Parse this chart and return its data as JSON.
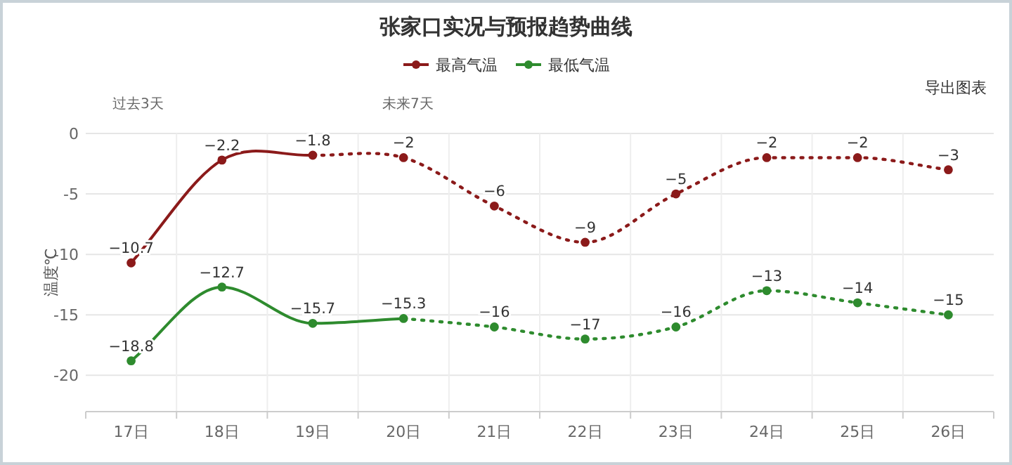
{
  "chart_data": {
    "type": "line",
    "title": "张家口实况与预报趋势曲线",
    "ylabel": "温度℃",
    "categories": [
      "17日",
      "18日",
      "19日",
      "20日",
      "21日",
      "22日",
      "23日",
      "24日",
      "25日",
      "26日"
    ],
    "series": [
      {
        "name": "最高气温",
        "color": "#8b1a1a",
        "line_style": "solid",
        "values": [
          -10.7,
          -2.2,
          -1.8,
          null,
          null,
          null,
          null,
          null,
          null,
          null
        ],
        "value_labels": [
          "−10.7",
          "−2.2",
          "−1.8",
          null,
          null,
          null,
          null,
          null,
          null,
          null
        ]
      },
      {
        "color": "#8b1a1a",
        "line_style": "dotted",
        "values": [
          null,
          null,
          -1.8,
          -2,
          -6,
          -9,
          -5,
          -2,
          -2,
          -3
        ],
        "value_labels": [
          null,
          null,
          null,
          "−2",
          "−6",
          "−9",
          "−5",
          "−2",
          "−2",
          "−3"
        ]
      },
      {
        "name": "最低气温",
        "color": "#2e8b2e",
        "line_style": "solid",
        "values": [
          -18.8,
          -12.7,
          -15.7,
          -15.3,
          null,
          null,
          null,
          null,
          null,
          null
        ],
        "value_labels": [
          "−18.8",
          "−12.7",
          "−15.7",
          "−15.3",
          null,
          null,
          null,
          null,
          null,
          null
        ]
      },
      {
        "color": "#2e8b2e",
        "line_style": "dotted",
        "values": [
          null,
          null,
          null,
          -15.3,
          -16,
          -17,
          -16,
          -13,
          -14,
          -15
        ],
        "value_labels": [
          null,
          null,
          null,
          null,
          "−16",
          "−17",
          "−16",
          "−13",
          "−14",
          "−15"
        ]
      }
    ],
    "ylim": [
      -23,
      0
    ],
    "yticks": [
      0,
      -5,
      -10,
      -15,
      -20
    ],
    "grid": true,
    "legend": "top",
    "marker": "circle",
    "annotations": [
      "过去3天",
      "未来7天",
      "导出图表"
    ]
  }
}
